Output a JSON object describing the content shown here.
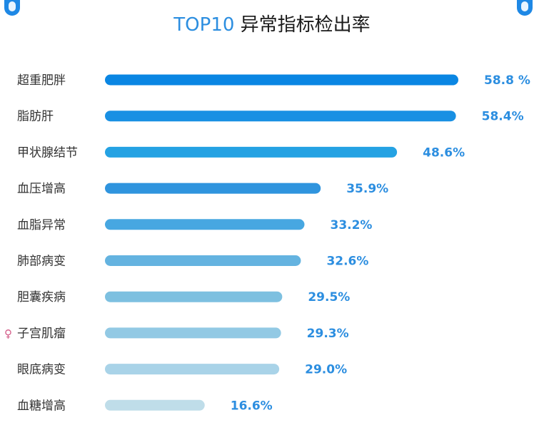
{
  "title": {
    "highlight": "TOP10",
    "text": "异常指标检出率"
  },
  "chart_data": {
    "type": "bar",
    "orientation": "horizontal",
    "title": "TOP10 异常指标检出率",
    "unit": "%",
    "categories": [
      "超重肥胖",
      "脂肪肝",
      "甲状腺结节",
      "血压增高",
      "血脂异常",
      "肺部病变",
      "胆囊疾病",
      "子宫肌瘤",
      "眼底病变",
      "血糖增高"
    ],
    "values": [
      58.8,
      58.4,
      48.6,
      35.9,
      33.2,
      32.6,
      29.5,
      29.3,
      29.0,
      16.6
    ],
    "value_labels": [
      "58.8 %",
      "58.4%",
      "48.6%",
      "35.9%",
      "33.2%",
      "32.6%",
      "29.5%",
      "29.3%",
      "29.0%",
      "16.6%"
    ],
    "bar_colors": [
      "#0a86e3",
      "#1990e3",
      "#25a2e3",
      "#2f94de",
      "#47a7e1",
      "#64b3e0",
      "#7dc0e0",
      "#92c9e4",
      "#a9d3e8",
      "#bfdde9"
    ],
    "label_color": "#2c8ee0",
    "grid": false,
    "legend": "none",
    "female_marker": {
      "row": 7,
      "symbol": "♀",
      "color": "#d35a87"
    }
  }
}
